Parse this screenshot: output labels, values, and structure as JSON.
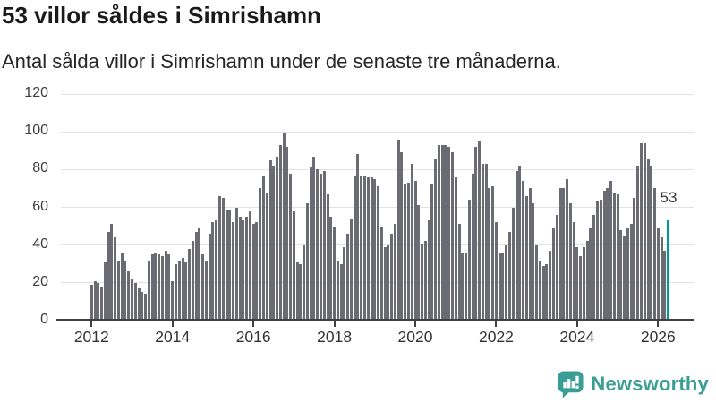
{
  "header": {
    "title": "53 villor såldes i Simrishamn",
    "subtitle": "Antal sålda villor i Simrishamn under de senaste tre månaderna."
  },
  "chart_data": {
    "type": "bar",
    "title": "53 villor såldes i Simrishamn",
    "subtitle": "Antal sålda villor i Simrishamn under de senaste tre månaderna.",
    "x_start": "2012-01",
    "x_interval": "month",
    "x_tick_labels": [
      "2012",
      "2014",
      "2016",
      "2018",
      "2020",
      "2022",
      "2024",
      "2026"
    ],
    "y_ticks": [
      0,
      20,
      40,
      60,
      80,
      100,
      120
    ],
    "ylim": [
      0,
      120
    ],
    "grid": "horizontal",
    "values": [
      19,
      21,
      20,
      18,
      31,
      47,
      51,
      44,
      32,
      36,
      32,
      26,
      22,
      20,
      17,
      15,
      14,
      32,
      35,
      36,
      35,
      34,
      37,
      35,
      21,
      30,
      32,
      33,
      31,
      38,
      42,
      47,
      49,
      35,
      32,
      46,
      52,
      53,
      66,
      65,
      59,
      59,
      52,
      60,
      55,
      53,
      55,
      58,
      51,
      52,
      70,
      77,
      68,
      85,
      82,
      87,
      93,
      99,
      92,
      78,
      58,
      31,
      30,
      40,
      62,
      81,
      87,
      80,
      78,
      79,
      67,
      55,
      50,
      32,
      30,
      39,
      46,
      54,
      77,
      88,
      77,
      77,
      76,
      76,
      75,
      71,
      50,
      39,
      40,
      46,
      51,
      96,
      89,
      72,
      73,
      83,
      74,
      61,
      41,
      42,
      53,
      72,
      86,
      93,
      93,
      93,
      92,
      89,
      76,
      51,
      36,
      36,
      64,
      78,
      92,
      95,
      83,
      83,
      70,
      71,
      52,
      36,
      36,
      40,
      47,
      60,
      79,
      82,
      74,
      66,
      70,
      62,
      40,
      32,
      29,
      30,
      37,
      49,
      56,
      70,
      70,
      75,
      62,
      52,
      39,
      34,
      39,
      42,
      49,
      56,
      63,
      64,
      69,
      70,
      74,
      68,
      67,
      48,
      45,
      49,
      51,
      65,
      82,
      94,
      94,
      86,
      82,
      70,
      49,
      44,
      37,
      53
    ],
    "highlight_index": 171,
    "highlight_value": 53,
    "highlight_label": "53",
    "bar_color": "#6b6b73",
    "highlight_color": "#009a96",
    "grid_color": "#e2e2e2",
    "axis_color": "#404040"
  },
  "branding": {
    "logo_text": "Newsworthy",
    "logo_color": "#3a9e94",
    "logo_icon": "newsworthy-speech-bubble-bar-chart-icon"
  }
}
